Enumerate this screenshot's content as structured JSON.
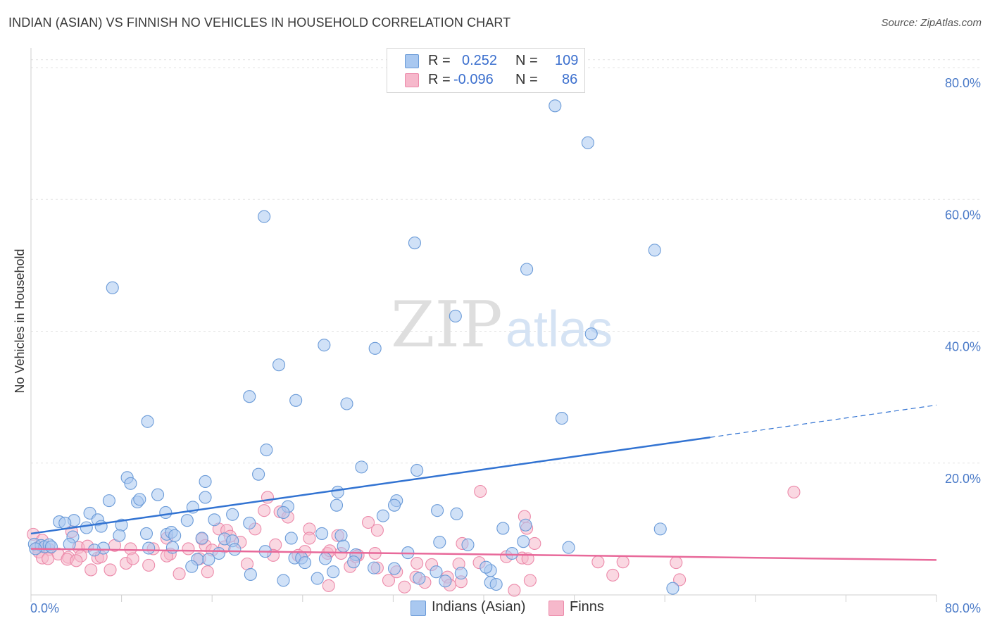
{
  "title": "INDIAN (ASIAN) VS FINNISH NO VEHICLES IN HOUSEHOLD CORRELATION CHART",
  "source": "Source: ZipAtlas.com",
  "watermark": {
    "zip": "ZIP",
    "atlas": "atlas"
  },
  "legend": {
    "rows": [
      {
        "r_label": "R =",
        "r_value": "0.252",
        "n_label": "N =",
        "n_value": "109"
      },
      {
        "r_label": "R =",
        "r_value": "-0.096",
        "n_label": "N =",
        "n_value": "86"
      }
    ]
  },
  "bottom_legend": [
    {
      "label": "Indians (Asian)"
    },
    {
      "label": "Finns"
    }
  ],
  "colors": {
    "blue_fill": "#a9c8f0",
    "blue_stroke": "#6b9bd8",
    "blue_line": "#3273d2",
    "pink_fill": "#f6b8cb",
    "pink_stroke": "#ec8aaa",
    "pink_line": "#e8699a",
    "axis_label": "#4a7ac8",
    "grid": "#e3e3e3"
  },
  "chart_data": {
    "type": "scatter",
    "title": "INDIAN (ASIAN) VS FINNISH NO VEHICLES IN HOUSEHOLD CORRELATION CHART",
    "xlabel": "",
    "ylabel": "No Vehicles in Household",
    "xlim": [
      0,
      80
    ],
    "ylim": [
      0,
      80
    ],
    "x_tick_labels": [
      "0.0%",
      "80.0%"
    ],
    "y_tick_labels": [
      {
        "value": 20,
        "label": "20.0%"
      },
      {
        "value": 40,
        "label": "40.0%"
      },
      {
        "value": 60,
        "label": "60.0%"
      },
      {
        "value": 80,
        "label": "80.0%"
      }
    ],
    "grid": true,
    "series": [
      {
        "name": "Indians (Asian)",
        "trend": {
          "x0": 0,
          "y0": 9.3,
          "x1": 60,
          "y1": 23.9,
          "dash_x1": 80,
          "dash_y1": 28.8
        },
        "points": [
          [
            46.3,
            74.2
          ],
          [
            49.2,
            68.6
          ],
          [
            20.6,
            57.4
          ],
          [
            33.9,
            53.4
          ],
          [
            55.1,
            52.3
          ],
          [
            43.8,
            49.4
          ],
          [
            7.2,
            46.6
          ],
          [
            37.5,
            42.3
          ],
          [
            49.5,
            39.6
          ],
          [
            25.9,
            37.9
          ],
          [
            30.4,
            37.4
          ],
          [
            21.9,
            34.9
          ],
          [
            19.3,
            30.1
          ],
          [
            23.4,
            29.5
          ],
          [
            27.9,
            29.0
          ],
          [
            46.9,
            26.8
          ],
          [
            10.3,
            26.3
          ],
          [
            20.8,
            22.0
          ],
          [
            29.2,
            19.4
          ],
          [
            34.1,
            18.9
          ],
          [
            20.1,
            18.3
          ],
          [
            8.5,
            17.8
          ],
          [
            8.8,
            16.9
          ],
          [
            15.4,
            17.2
          ],
          [
            27.1,
            15.6
          ],
          [
            11.2,
            15.2
          ],
          [
            6.9,
            14.3
          ],
          [
            9.4,
            14.1
          ],
          [
            9.6,
            14.5
          ],
          [
            15.4,
            14.8
          ],
          [
            32.3,
            14.3
          ],
          [
            32.1,
            13.6
          ],
          [
            14.3,
            13.3
          ],
          [
            22.7,
            13.4
          ],
          [
            27.0,
            13.6
          ],
          [
            11.9,
            12.5
          ],
          [
            22.3,
            12.5
          ],
          [
            35.9,
            12.8
          ],
          [
            37.6,
            12.3
          ],
          [
            17.8,
            12.2
          ],
          [
            5.2,
            12.4
          ],
          [
            31.1,
            12.0
          ],
          [
            2.5,
            11.1
          ],
          [
            3.8,
            11.3
          ],
          [
            5.9,
            11.4
          ],
          [
            3.0,
            10.9
          ],
          [
            16.2,
            11.4
          ],
          [
            13.8,
            11.3
          ],
          [
            19.3,
            10.9
          ],
          [
            4.9,
            10.2
          ],
          [
            6.2,
            10.4
          ],
          [
            8.0,
            10.6
          ],
          [
            41.7,
            10.1
          ],
          [
            43.7,
            10.6
          ],
          [
            55.6,
            10.0
          ],
          [
            3.7,
            8.8
          ],
          [
            7.8,
            9.0
          ],
          [
            10.2,
            9.3
          ],
          [
            12.0,
            9.2
          ],
          [
            12.4,
            9.5
          ],
          [
            12.7,
            9.0
          ],
          [
            23.0,
            8.6
          ],
          [
            25.7,
            9.3
          ],
          [
            27.4,
            9.0
          ],
          [
            15.1,
            8.6
          ],
          [
            17.1,
            8.5
          ],
          [
            17.8,
            8.2
          ],
          [
            36.1,
            8.0
          ],
          [
            43.5,
            8.1
          ],
          [
            0.3,
            7.7
          ],
          [
            0.9,
            7.5
          ],
          [
            1.2,
            7.3
          ],
          [
            1.6,
            7.6
          ],
          [
            3.4,
            7.7
          ],
          [
            0.4,
            7.0
          ],
          [
            1.8,
            7.3
          ],
          [
            6.4,
            7.1
          ],
          [
            10.4,
            7.1
          ],
          [
            18.0,
            6.9
          ],
          [
            27.6,
            7.4
          ],
          [
            38.6,
            7.6
          ],
          [
            47.5,
            7.2
          ],
          [
            12.5,
            7.2
          ],
          [
            5.6,
            6.8
          ],
          [
            16.6,
            6.3
          ],
          [
            20.7,
            6.6
          ],
          [
            28.7,
            6.1
          ],
          [
            33.3,
            6.4
          ],
          [
            42.5,
            6.3
          ],
          [
            23.3,
            5.6
          ],
          [
            23.9,
            5.6
          ],
          [
            14.7,
            5.4
          ],
          [
            15.7,
            5.4
          ],
          [
            26.0,
            5.5
          ],
          [
            28.5,
            5.0
          ],
          [
            30.3,
            4.1
          ],
          [
            24.2,
            4.9
          ],
          [
            14.2,
            4.3
          ],
          [
            32.1,
            4.0
          ],
          [
            40.6,
            3.7
          ],
          [
            35.8,
            3.5
          ],
          [
            38.0,
            3.3
          ],
          [
            40.2,
            4.2
          ],
          [
            26.7,
            3.5
          ],
          [
            19.4,
            3.1
          ],
          [
            22.3,
            2.2
          ],
          [
            34.3,
            2.5
          ],
          [
            36.6,
            2.1
          ],
          [
            40.6,
            1.9
          ],
          [
            56.7,
            1.0
          ],
          [
            41.1,
            1.6
          ],
          [
            25.3,
            2.5
          ]
        ]
      },
      {
        "name": "Finns",
        "trend": {
          "x0": 0,
          "y0": 7.0,
          "x1": 80,
          "y1": 5.3
        },
        "points": [
          [
            0.2,
            9.2
          ],
          [
            1.0,
            8.3
          ],
          [
            39.7,
            15.7
          ],
          [
            67.4,
            15.6
          ],
          [
            20.9,
            14.8
          ],
          [
            20.6,
            12.8
          ],
          [
            22.0,
            12.6
          ],
          [
            22.7,
            11.8
          ],
          [
            29.8,
            11.0
          ],
          [
            43.6,
            11.9
          ],
          [
            43.8,
            10.1
          ],
          [
            3.6,
            9.6
          ],
          [
            16.6,
            10.0
          ],
          [
            19.8,
            10.0
          ],
          [
            24.6,
            10.0
          ],
          [
            17.3,
            9.8
          ],
          [
            30.6,
            9.8
          ],
          [
            12.0,
            8.6
          ],
          [
            15.1,
            8.5
          ],
          [
            17.6,
            8.9
          ],
          [
            18.5,
            8.0
          ],
          [
            24.6,
            8.6
          ],
          [
            27.1,
            9.0
          ],
          [
            0.6,
            7.2
          ],
          [
            0.7,
            6.5
          ],
          [
            1.6,
            6.9
          ],
          [
            2.4,
            6.2
          ],
          [
            4.2,
            7.2
          ],
          [
            5.0,
            7.4
          ],
          [
            7.4,
            7.5
          ],
          [
            8.8,
            7.0
          ],
          [
            10.8,
            7.0
          ],
          [
            12.3,
            6.2
          ],
          [
            13.9,
            7.0
          ],
          [
            15.4,
            7.5
          ],
          [
            16.0,
            6.8
          ],
          [
            17.1,
            7.3
          ],
          [
            21.6,
            7.6
          ],
          [
            24.2,
            6.6
          ],
          [
            26.2,
            6.3
          ],
          [
            26.4,
            6.7
          ],
          [
            27.4,
            6.3
          ],
          [
            28.9,
            6.0
          ],
          [
            30.4,
            6.3
          ],
          [
            38.1,
            7.8
          ],
          [
            44.5,
            7.8
          ],
          [
            3.3,
            5.7
          ],
          [
            4.4,
            5.9
          ],
          [
            5.9,
            5.6
          ],
          [
            1.0,
            5.6
          ],
          [
            1.5,
            5.5
          ],
          [
            3.2,
            5.4
          ],
          [
            4.0,
            5.2
          ],
          [
            6.2,
            5.8
          ],
          [
            8.4,
            4.8
          ],
          [
            9.0,
            5.5
          ],
          [
            10.4,
            4.5
          ],
          [
            12.0,
            5.9
          ],
          [
            14.9,
            5.5
          ],
          [
            19.1,
            4.7
          ],
          [
            21.4,
            6.0
          ],
          [
            23.6,
            6.0
          ],
          [
            28.2,
            4.3
          ],
          [
            28.7,
            5.8
          ],
          [
            30.6,
            4.1
          ],
          [
            34.1,
            4.8
          ],
          [
            35.4,
            4.6
          ],
          [
            37.8,
            4.7
          ],
          [
            39.6,
            4.9
          ],
          [
            42.0,
            5.8
          ],
          [
            43.4,
            5.6
          ],
          [
            43.9,
            5.5
          ],
          [
            50.1,
            5.0
          ],
          [
            52.3,
            5.0
          ],
          [
            57.0,
            4.9
          ],
          [
            5.3,
            3.8
          ],
          [
            7.0,
            3.8
          ],
          [
            13.1,
            3.2
          ],
          [
            15.6,
            3.5
          ],
          [
            31.6,
            2.2
          ],
          [
            32.3,
            3.5
          ],
          [
            34.0,
            2.7
          ],
          [
            34.8,
            1.9
          ],
          [
            36.8,
            2.7
          ],
          [
            38.0,
            2.0
          ],
          [
            44.1,
            2.2
          ],
          [
            51.4,
            3.0
          ],
          [
            57.3,
            2.3
          ],
          [
            26.3,
            1.4
          ],
          [
            33.0,
            1.2
          ],
          [
            37.0,
            1.5
          ],
          [
            42.7,
            0.7
          ]
        ]
      }
    ]
  }
}
